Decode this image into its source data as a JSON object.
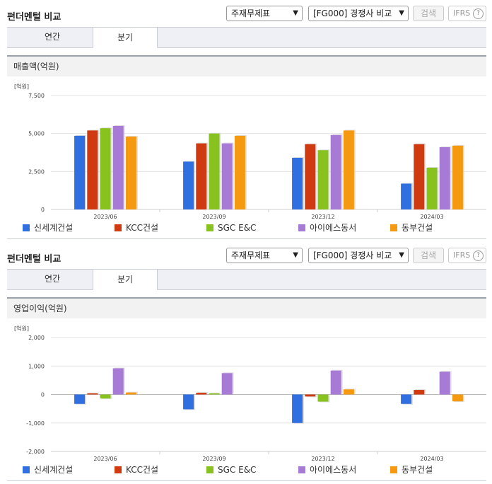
{
  "panels": [
    {
      "title": "펀더멘털 비교",
      "statement_select": "주재무제표",
      "peer_select": "[FG000] 경쟁사 비교",
      "search_label": "검색",
      "ifrs_label": "IFRS",
      "help_glyph": "?",
      "tabs": [
        {
          "label": "연간"
        },
        {
          "label": "분기"
        }
      ],
      "active_tab": "분기",
      "subheader": "매출액(억원)"
    },
    {
      "title": "펀더멘털 비교",
      "statement_select": "주재무제표",
      "peer_select": "[FG000] 경쟁사 비교",
      "search_label": "검색",
      "ifrs_label": "IFRS",
      "help_glyph": "?",
      "tabs": [
        {
          "label": "연간"
        },
        {
          "label": "분기"
        }
      ],
      "active_tab": "분기",
      "subheader": "영업이익(억원)"
    }
  ],
  "colors": {
    "신세계건설": "#2f6fe0",
    "KCC건설": "#d03a10",
    "SGC E&C": "#88c21e",
    "아이에스동서": "#a77ad6",
    "동부건설": "#f59a10"
  },
  "chart_data": [
    {
      "type": "bar",
      "unit_label": "[억원]",
      "categories": [
        "2023/06",
        "2023/09",
        "2023/12",
        "2024/03"
      ],
      "ylim": [
        0,
        7500
      ],
      "yticks": [
        0,
        2500,
        5000,
        7500
      ],
      "ytick_labels": [
        "0",
        "2,500",
        "5,000",
        "7,500"
      ],
      "grid": true,
      "legend_position": "bottom",
      "series": [
        {
          "name": "신세계건설",
          "values": [
            4850,
            3150,
            3400,
            1700
          ]
        },
        {
          "name": "KCC건설",
          "values": [
            5200,
            4350,
            4300,
            4300
          ]
        },
        {
          "name": "SGC E&C",
          "values": [
            5350,
            5000,
            3900,
            2750
          ]
        },
        {
          "name": "아이에스동서",
          "values": [
            5500,
            4350,
            4900,
            4100
          ]
        },
        {
          "name": "동부건설",
          "values": [
            4800,
            4850,
            5200,
            4200
          ]
        }
      ]
    },
    {
      "type": "bar",
      "unit_label": "[억원]",
      "categories": [
        "2023/06",
        "2023/09",
        "2023/12",
        "2024/03"
      ],
      "ylim": [
        -2000,
        2000
      ],
      "yticks": [
        -2000,
        -1000,
        0,
        1000,
        2000
      ],
      "ytick_labels": [
        "-2,000",
        "-1,000",
        "0",
        "1,000",
        "2,000"
      ],
      "grid": true,
      "legend_position": "bottom",
      "series": [
        {
          "name": "신세계건설",
          "values": [
            -330,
            -520,
            -1000,
            -330
          ]
        },
        {
          "name": "KCC건설",
          "values": [
            40,
            60,
            -70,
            160
          ]
        },
        {
          "name": "SGC E&C",
          "values": [
            -140,
            40,
            -250,
            0
          ]
        },
        {
          "name": "아이에스동서",
          "values": [
            920,
            750,
            840,
            800
          ]
        },
        {
          "name": "동부건설",
          "values": [
            70,
            0,
            180,
            -240
          ]
        }
      ]
    }
  ]
}
